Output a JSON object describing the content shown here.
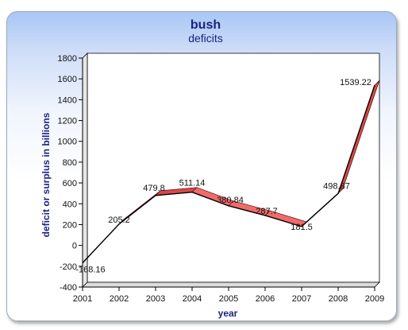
{
  "chart_data": {
    "type": "line",
    "title": "bush",
    "subtitle": "deficits",
    "xlabel": "year",
    "ylabel": "deficit or surplus in billions",
    "categories": [
      "2001",
      "2002",
      "2003",
      "2004",
      "2005",
      "2006",
      "2007",
      "2008",
      "2009"
    ],
    "series": [
      {
        "values": [
          -168.16,
          205.2,
          479.8,
          511.14,
          380.84,
          287.7,
          181.5,
          498.87,
          1539.22
        ],
        "labels": [
          "-168.16",
          "205.2",
          "479.8",
          "511.14",
          "380.84",
          "287.7",
          "181.5",
          "498.87",
          "1539.22"
        ]
      }
    ],
    "ylim": [
      -400,
      1800
    ],
    "yticks": [
      "-400",
      "-200",
      "0",
      "200",
      "400",
      "600",
      "800",
      "1000",
      "1200",
      "1400",
      "1600",
      "1800"
    ],
    "colors": {
      "fill": "#f26a6a",
      "line": "#000000",
      "title": "#1a237e"
    }
  }
}
